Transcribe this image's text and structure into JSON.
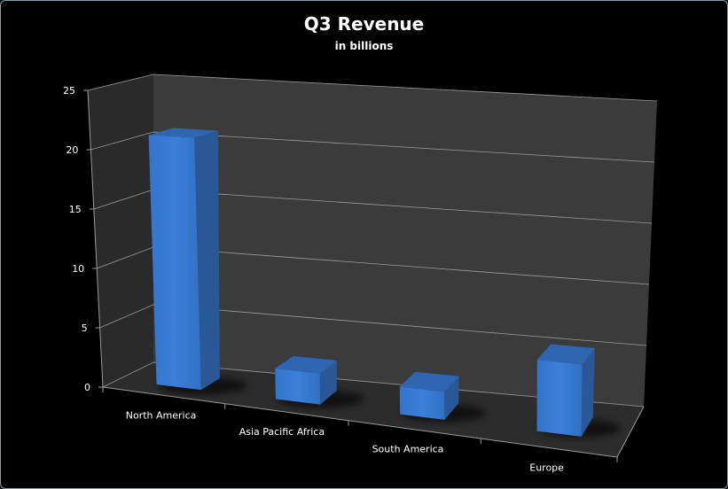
{
  "chart_data": {
    "type": "bar",
    "variant": "3d-column",
    "title": "Q3 Revenue",
    "subtitle": "in billions",
    "categories": [
      "North America",
      "Asia Pacific Africa",
      "South America",
      "Europe"
    ],
    "values": [
      21,
      2.5,
      2.2,
      5.5
    ],
    "ylim": [
      0,
      25
    ],
    "yticks": [
      "0",
      "5",
      "10",
      "15",
      "20",
      "25"
    ],
    "xlabel": "",
    "ylabel": "",
    "grid": true,
    "legend": "none",
    "colors": {
      "bar": "#3a7bd5",
      "background": "#000000"
    }
  }
}
